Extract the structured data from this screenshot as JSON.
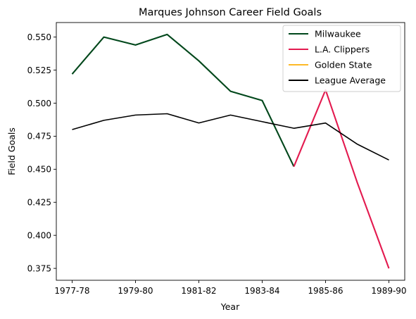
{
  "chart_data": {
    "type": "line",
    "title": "Marques Johnson Career Field Goals",
    "xlabel": "Year",
    "ylabel": "Field Goals",
    "x_tick_labels": [
      "1977-78",
      "1979-80",
      "1981-82",
      "1983-84",
      "1985-86",
      "1989-90"
    ],
    "x_tick_indices": [
      0,
      2,
      4,
      6,
      8,
      10
    ],
    "y_ticks": [
      0.375,
      0.4,
      0.425,
      0.45,
      0.475,
      0.5,
      0.525,
      0.55
    ],
    "y_tick_labels": [
      "0.375",
      "0.400",
      "0.425",
      "0.450",
      "0.475",
      "0.500",
      "0.525",
      "0.550"
    ],
    "ylim": [
      0.366,
      0.561
    ],
    "xlim": [
      -0.5,
      10.5
    ],
    "grid": false,
    "legend_position": "top-right",
    "series": [
      {
        "name": "Milwaukee",
        "color": "#00471B",
        "x": [
          0,
          1,
          2,
          3,
          4,
          5,
          6,
          7
        ],
        "values": [
          0.522,
          0.55,
          0.544,
          0.552,
          0.532,
          0.509,
          0.502,
          0.452
        ]
      },
      {
        "name": "L.A. Clippers",
        "color": "#E31A4F",
        "x": [
          7,
          8,
          9,
          10
        ],
        "values": [
          0.452,
          0.51,
          0.44,
          0.375
        ]
      },
      {
        "name": "Golden State",
        "color": "#FDB927",
        "x": [],
        "values": []
      },
      {
        "name": "League Average",
        "color": "#000000",
        "x": [
          0,
          1,
          2,
          3,
          4,
          5,
          6,
          7,
          8,
          9,
          10
        ],
        "values": [
          0.48,
          0.487,
          0.491,
          0.492,
          0.485,
          0.491,
          0.486,
          0.481,
          0.485,
          0.469,
          0.457
        ]
      }
    ]
  }
}
